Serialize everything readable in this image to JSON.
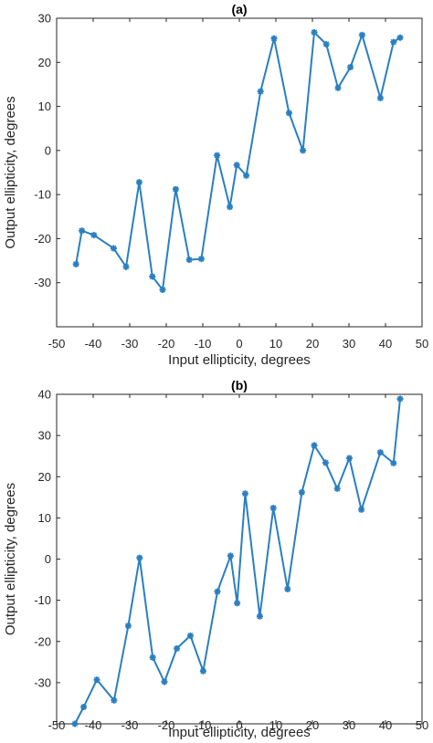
{
  "chart_data": [
    {
      "type": "line",
      "title": "(a)",
      "xlabel": "Input ellipticity, degrees",
      "ylabel": "Output ellipticity, degrees",
      "xlim": [
        -50,
        50
      ],
      "ylim": [
        -40,
        30
      ],
      "xticks": [
        -50,
        -40,
        -30,
        -20,
        -10,
        0,
        10,
        20,
        30,
        40,
        50
      ],
      "yticks": [
        -30,
        -20,
        -10,
        0,
        10,
        20,
        30
      ],
      "xtick_labels": [
        "-50",
        "-40",
        "-30",
        "-20",
        "-10",
        "0",
        "10",
        "20",
        "30",
        "40",
        "50"
      ],
      "ytick_labels": [
        "-30",
        "-20",
        "-10",
        "0",
        "10",
        "20",
        "30"
      ],
      "grid": false,
      "color": "#2a7fc0",
      "x": [
        -44.7,
        -43.1,
        -39.8,
        -34.4,
        -31.0,
        -27.4,
        -23.8,
        -21.0,
        -17.4,
        -13.7,
        -10.4,
        -6.1,
        -2.6,
        -0.7,
        1.9,
        5.8,
        9.5,
        13.6,
        17.4,
        20.5,
        23.8,
        27.0,
        30.4,
        33.6,
        38.6,
        42.2,
        44.0
      ],
      "y": [
        -25.8,
        -18.2,
        -19.2,
        -22.2,
        -26.4,
        -7.2,
        -28.6,
        -31.6,
        -8.8,
        -24.8,
        -24.6,
        -1.1,
        -12.8,
        -3.3,
        -5.7,
        13.4,
        25.4,
        8.5,
        0.0,
        26.8,
        24.1,
        14.2,
        18.9,
        26.2,
        11.9,
        24.6,
        25.6
      ]
    },
    {
      "type": "line",
      "title": "(b)",
      "xlabel": "Input ellipticity, degrees",
      "ylabel": "Output ellipticity, degrees",
      "xlim": [
        -50,
        50
      ],
      "ylim": [
        -40,
        40
      ],
      "xticks": [
        -50,
        -40,
        -30,
        -20,
        -10,
        0,
        10,
        20,
        30,
        40,
        50
      ],
      "yticks": [
        -30,
        -20,
        -10,
        0,
        10,
        20,
        30,
        40
      ],
      "xtick_labels": [
        "-50",
        "-40",
        "-30",
        "-20",
        "-10",
        "0",
        "10",
        "20",
        "30",
        "40",
        "50"
      ],
      "ytick_labels": [
        "-30",
        "-20",
        "-10",
        "0",
        "10",
        "20",
        "30",
        "40"
      ],
      "grid": false,
      "color": "#2a7fc0",
      "x": [
        -45.0,
        -42.6,
        -39.0,
        -34.3,
        -30.4,
        -27.3,
        -23.7,
        -20.5,
        -17.1,
        -13.4,
        -9.9,
        -6.0,
        -2.4,
        -0.6,
        1.6,
        5.6,
        9.3,
        13.2,
        17.1,
        20.5,
        23.6,
        26.8,
        30.1,
        33.4,
        38.6,
        42.2,
        44.0
      ],
      "y": [
        -40.0,
        -35.9,
        -29.3,
        -34.3,
        -16.2,
        0.3,
        -23.9,
        -29.8,
        -21.7,
        -18.6,
        -27.2,
        -7.9,
        0.8,
        -10.7,
        15.9,
        -13.9,
        12.4,
        -7.3,
        16.2,
        27.6,
        23.4,
        17.1,
        24.5,
        12.0,
        25.9,
        23.3,
        38.9
      ]
    }
  ]
}
